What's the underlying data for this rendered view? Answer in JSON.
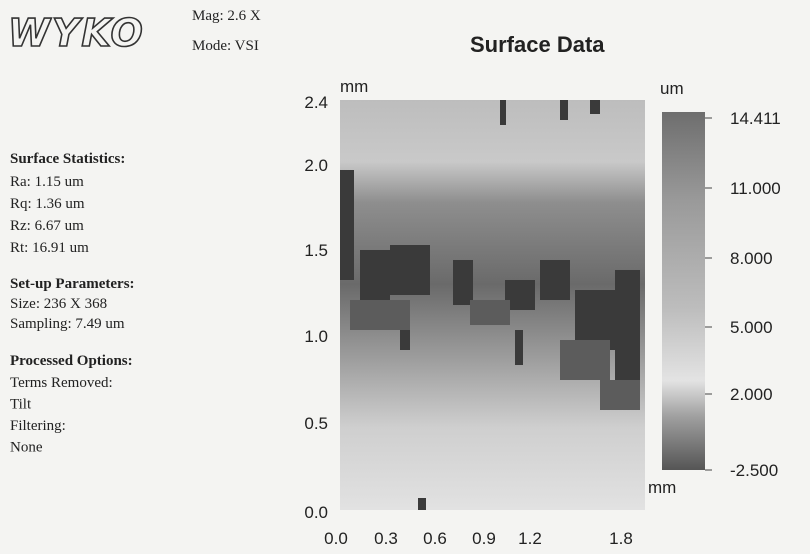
{
  "header": {
    "logo": "WYKO",
    "mag": "Mag:  2.6 X",
    "mode": "Mode:  VSI",
    "title": "Surface Data"
  },
  "statistics": {
    "heading": "Surface Statistics:",
    "items": [
      "Ra:  1.15 um",
      "Rq:  1.36 um",
      "Rz:  6.67 um",
      "Rt:  16.91 um"
    ]
  },
  "setup": {
    "heading": "Set-up Parameters:",
    "items": [
      "Size: 236 X 368",
      "Sampling:  7.49 um"
    ]
  },
  "options": {
    "heading": "Processed Options:",
    "items": [
      "Terms Removed:",
      "Tilt",
      "Filtering:",
      "None"
    ]
  },
  "plot": {
    "y_unit": "mm",
    "x_unit": "mm",
    "y_labels": [
      "2.4",
      "2.0",
      "1.5",
      "1.0",
      "0.5",
      "0.0"
    ],
    "x_labels": [
      "0.0",
      "0.3",
      "0.6",
      "0.9",
      "1.2",
      "1.8"
    ],
    "colorbar_unit": "um",
    "colorbar_labels": [
      "14.411",
      "11.000",
      "8.000",
      "5.000",
      "2.000",
      "-2.500"
    ]
  }
}
